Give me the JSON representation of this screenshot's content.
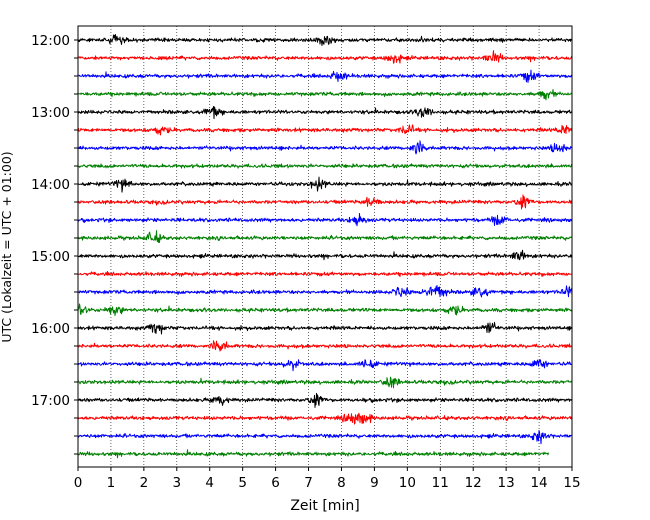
{
  "chart_data": {
    "type": "line",
    "title": "",
    "xlabel": "Zeit  [min]",
    "ylabel": "UTC (Lokalzeit = UTC + 01:00)",
    "xlim": [
      0,
      15
    ],
    "x_ticks": [
      0,
      1,
      2,
      3,
      4,
      5,
      6,
      7,
      8,
      9,
      10,
      11,
      12,
      13,
      14,
      15
    ],
    "x_tick_labels": [
      "0",
      "1",
      "2",
      "3",
      "4",
      "5",
      "6",
      "7",
      "8",
      "9",
      "10",
      "11",
      "12",
      "13",
      "14",
      "15"
    ],
    "y_tick_labels": [
      "12:00",
      "13:00",
      "14:00",
      "15:00",
      "16:00",
      "17:00"
    ],
    "grid": "vertical-dotted",
    "trace_interval_minutes": 15,
    "trace_colors": [
      "#000000",
      "#ff0000",
      "#0000ff",
      "#008000"
    ],
    "traces": [
      {
        "start": "12:00",
        "color": "#000000",
        "end_min": 15,
        "bursts": [
          1.2,
          7.5
        ]
      },
      {
        "start": "12:15",
        "color": "#ff0000",
        "end_min": 15,
        "bursts": [
          9.6,
          12.6
        ]
      },
      {
        "start": "12:30",
        "color": "#0000ff",
        "end_min": 15,
        "bursts": [
          7.9,
          13.7
        ]
      },
      {
        "start": "12:45",
        "color": "#008000",
        "end_min": 15,
        "bursts": [
          14.2
        ]
      },
      {
        "start": "13:00",
        "color": "#000000",
        "end_min": 15,
        "bursts": [
          4.1,
          10.5
        ]
      },
      {
        "start": "13:15",
        "color": "#ff0000",
        "end_min": 15,
        "bursts": [
          2.5,
          10.0,
          14.8
        ]
      },
      {
        "start": "13:30",
        "color": "#0000ff",
        "end_min": 15,
        "bursts": [
          10.3,
          14.6
        ]
      },
      {
        "start": "13:45",
        "color": "#008000",
        "end_min": 15,
        "bursts": []
      },
      {
        "start": "14:00",
        "color": "#000000",
        "end_min": 15,
        "bursts": [
          1.35,
          7.3
        ]
      },
      {
        "start": "14:15",
        "color": "#ff0000",
        "end_min": 15,
        "bursts": [
          8.9,
          13.5
        ]
      },
      {
        "start": "14:30",
        "color": "#0000ff",
        "end_min": 15,
        "bursts": [
          8.5,
          12.8
        ]
      },
      {
        "start": "14:45",
        "color": "#008000",
        "end_min": 15,
        "bursts": [
          2.3
        ]
      },
      {
        "start": "15:00",
        "color": "#000000",
        "end_min": 15,
        "bursts": [
          13.4
        ]
      },
      {
        "start": "15:15",
        "color": "#ff0000",
        "end_min": 15,
        "bursts": []
      },
      {
        "start": "15:30",
        "color": "#0000ff",
        "end_min": 15,
        "bursts": [
          9.8,
          10.7,
          11.0,
          12.2,
          14.9
        ]
      },
      {
        "start": "15:45",
        "color": "#008000",
        "end_min": 15,
        "bursts": [
          0.1,
          1.1,
          11.4
        ]
      },
      {
        "start": "16:00",
        "color": "#000000",
        "end_min": 15,
        "bursts": [
          2.4,
          12.5
        ]
      },
      {
        "start": "16:15",
        "color": "#ff0000",
        "end_min": 15,
        "bursts": [
          4.3
        ]
      },
      {
        "start": "16:30",
        "color": "#0000ff",
        "end_min": 15,
        "bursts": [
          6.5,
          8.8,
          14.0
        ]
      },
      {
        "start": "16:45",
        "color": "#008000",
        "end_min": 15,
        "bursts": [
          9.5
        ]
      },
      {
        "start": "17:00",
        "color": "#000000",
        "end_min": 15,
        "bursts": [
          4.3,
          7.2
        ]
      },
      {
        "start": "17:15",
        "color": "#ff0000",
        "end_min": 15,
        "bursts": [
          8.3,
          8.7
        ]
      },
      {
        "start": "17:30",
        "color": "#0000ff",
        "end_min": 15,
        "bursts": [
          14.0
        ]
      },
      {
        "start": "17:45",
        "color": "#008000",
        "end_min": 14.3,
        "bursts": []
      }
    ]
  }
}
